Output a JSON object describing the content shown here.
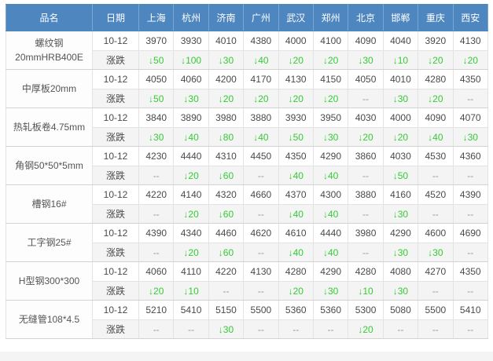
{
  "colors": {
    "header_bg": "#4e86c0",
    "header_text": "#ffffff",
    "down_green": "#33cc33",
    "value_text": "#4a4a4a",
    "muted_dash": "#999999",
    "change_row_bg": "#f4f4f4"
  },
  "chart_data": {
    "type": "table",
    "columns": [
      "品名",
      "日期",
      "上海",
      "杭州",
      "济南",
      "广州",
      "武汉",
      "郑州",
      "北京",
      "邯郸",
      "重庆",
      "西安"
    ],
    "change_row_label": "涨跌",
    "rows": [
      {
        "product_lines": [
          "螺纹钢",
          "20mmHRB400E"
        ],
        "date": "10-12",
        "prices": [
          "3970",
          "3930",
          "4010",
          "4380",
          "4000",
          "4100",
          "4090",
          "4040",
          "3920",
          "4130"
        ],
        "changes": [
          "↓50",
          "↓100",
          "↓30",
          "↓40",
          "↓20",
          "↓20",
          "↓30",
          "↓10",
          "↓20",
          "↓20"
        ]
      },
      {
        "product_lines": [
          "中厚板20mm"
        ],
        "date": "10-12",
        "prices": [
          "4050",
          "4060",
          "4200",
          "4170",
          "4130",
          "4150",
          "4050",
          "4010",
          "4280",
          "4350"
        ],
        "changes": [
          "↓50",
          "↓30",
          "↓20",
          "↓20",
          "↓20",
          "↓20",
          "--",
          "↓30",
          "↓20",
          "--"
        ]
      },
      {
        "product_lines": [
          "热轧板卷4.75mm"
        ],
        "date": "10-12",
        "prices": [
          "3840",
          "3890",
          "3980",
          "3880",
          "3930",
          "3950",
          "4030",
          "4000",
          "4090",
          "4070"
        ],
        "changes": [
          "↓30",
          "↓40",
          "↓80",
          "↓40",
          "↓50",
          "↓30",
          "↓20",
          "↓20",
          "↓40",
          "↓30"
        ]
      },
      {
        "product_lines": [
          "角钢50*50*5mm"
        ],
        "date": "10-12",
        "prices": [
          "4230",
          "4440",
          "4310",
          "4450",
          "4350",
          "4290",
          "3860",
          "4030",
          "4530",
          "4360"
        ],
        "changes": [
          "--",
          "↓20",
          "↓60",
          "--",
          "↓40",
          "↓40",
          "--",
          "↓50",
          "--",
          "--"
        ]
      },
      {
        "product_lines": [
          "槽钢16#"
        ],
        "date": "10-12",
        "prices": [
          "4220",
          "4140",
          "4320",
          "4660",
          "4370",
          "4300",
          "3880",
          "4160",
          "4520",
          "4390"
        ],
        "changes": [
          "--",
          "↓20",
          "↓60",
          "--",
          "↓40",
          "↓40",
          "--",
          "↓30",
          "--",
          "--"
        ]
      },
      {
        "product_lines": [
          "工字钢25#"
        ],
        "date": "10-12",
        "prices": [
          "4390",
          "4340",
          "4460",
          "4620",
          "4610",
          "4440",
          "3980",
          "4290",
          "4600",
          "4690"
        ],
        "changes": [
          "--",
          "↓20",
          "↓60",
          "--",
          "↓40",
          "↓40",
          "--",
          "↓30",
          "↓30",
          "--"
        ]
      },
      {
        "product_lines": [
          "H型钢300*300"
        ],
        "date": "10-12",
        "prices": [
          "4060",
          "4110",
          "4220",
          "4130",
          "4280",
          "4290",
          "4280",
          "4080",
          "4270",
          "4350"
        ],
        "changes": [
          "↓20",
          "↓10",
          "--",
          "--",
          "↓20",
          "↓30",
          "↓10",
          "↓30",
          "--",
          "--"
        ]
      },
      {
        "product_lines": [
          "无缝管108*4.5"
        ],
        "date": "10-12",
        "prices": [
          "5210",
          "5410",
          "5150",
          "5500",
          "5360",
          "5360",
          "5300",
          "5080",
          "5500",
          "5410"
        ],
        "changes": [
          "--",
          "--",
          "↓30",
          "--",
          "--",
          "--",
          "↓20",
          "--",
          "--",
          "--"
        ]
      }
    ]
  }
}
